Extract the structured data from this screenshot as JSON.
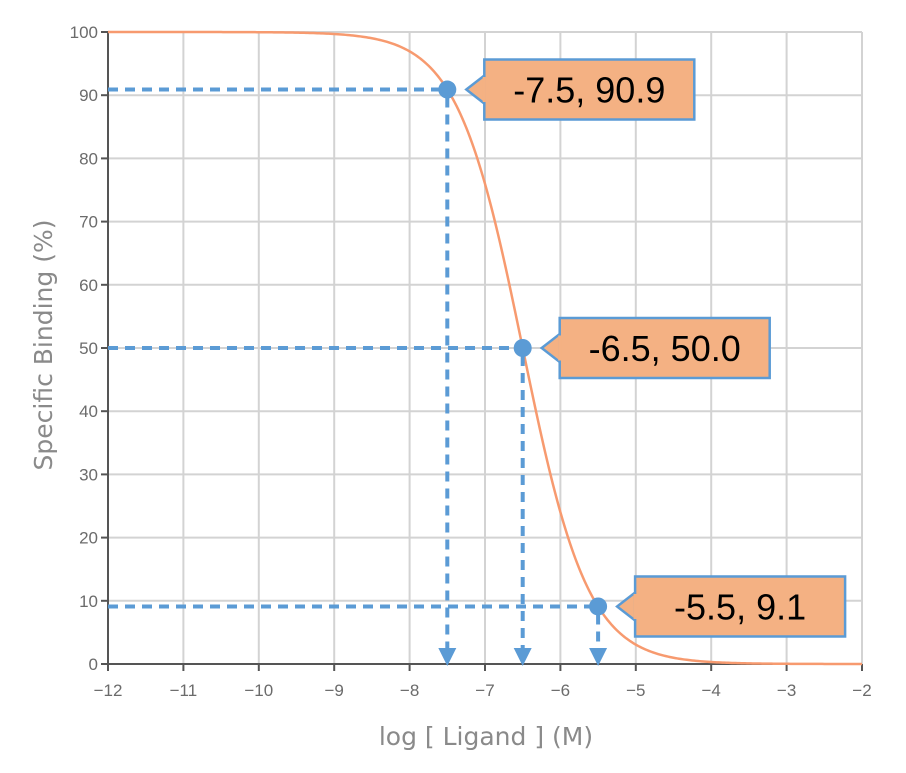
{
  "chart_data": {
    "type": "line",
    "xlabel": "log [ Ligand ] (M)",
    "ylabel": "Specific Binding (%)",
    "xlim": [
      -12,
      -2
    ],
    "ylim": [
      0,
      100
    ],
    "x_ticks": [
      "−12",
      "−11",
      "−10",
      "−9",
      "−8",
      "−7",
      "−6",
      "−5",
      "−4",
      "−3",
      "−2"
    ],
    "x_tick_values": [
      -12,
      -11,
      -10,
      -9,
      -8,
      -7,
      -6,
      -5,
      -4,
      -3,
      -2
    ],
    "y_ticks": [
      "0",
      "10",
      "20",
      "30",
      "40",
      "50",
      "60",
      "70",
      "80",
      "90",
      "100"
    ],
    "y_tick_values": [
      0,
      10,
      20,
      30,
      40,
      50,
      60,
      70,
      80,
      90,
      100
    ],
    "grid": true,
    "series": [
      {
        "curve_model": "sigmoid",
        "top": 100,
        "bottom": 0,
        "log_ic50": -6.5,
        "hill_slope": -1,
        "color": "#f79a6f"
      }
    ],
    "highlighted_points": [
      {
        "x": -7.5,
        "y": 90.9,
        "label": "-7.5, 90.9"
      },
      {
        "x": -6.5,
        "y": 50.0,
        "label": "-6.5, 50.0"
      },
      {
        "x": -5.5,
        "y": 9.1,
        "label": "-5.5, 9.1"
      }
    ],
    "colors": {
      "guide": "#5b9bd5",
      "callout_fill": "#f4b183",
      "callout_border": "#5b9bd5",
      "grid": "#d3d3d3",
      "axis": "#555555"
    }
  }
}
